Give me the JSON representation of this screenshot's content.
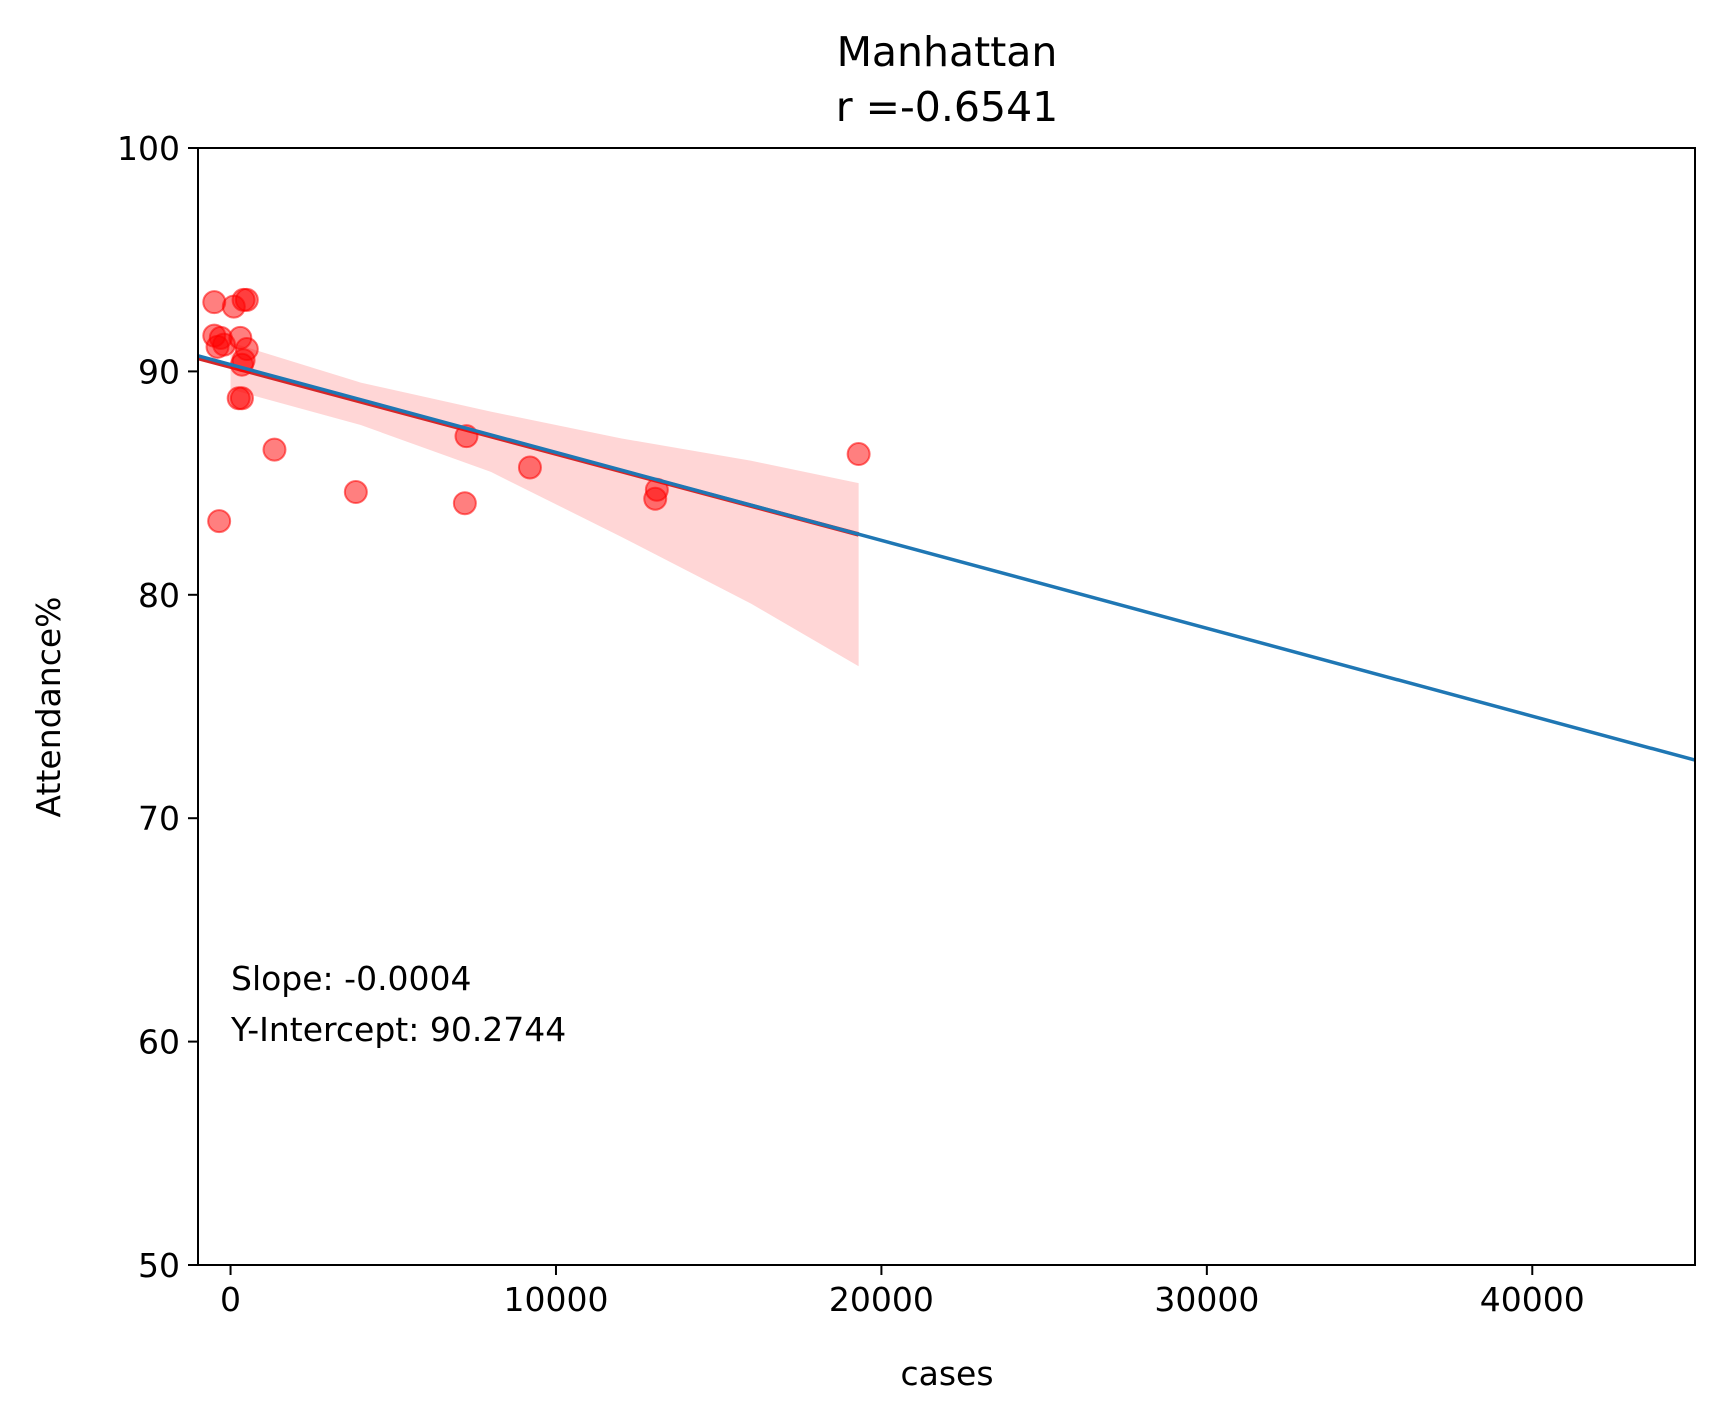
{
  "chart_data": {
    "type": "scatter",
    "title": "Manhattan",
    "subtitle": "r =-0.6541",
    "xlabel": "cases",
    "ylabel": "Attendance%",
    "xlim": [
      -1000,
      45000
    ],
    "ylim": [
      50,
      100
    ],
    "x_ticks": [
      0,
      10000,
      20000,
      30000,
      40000
    ],
    "x_tick_labels": [
      "0",
      "10000",
      "20000",
      "30000",
      "40000"
    ],
    "y_ticks": [
      50,
      60,
      70,
      80,
      90,
      100
    ],
    "y_tick_labels": [
      "50",
      "60",
      "70",
      "80",
      "90",
      "100"
    ],
    "grid": false,
    "annotations": [
      "Slope: -0.0004",
      "Y-Intercept: 90.2744"
    ],
    "points": [
      {
        "x": -500,
        "y": 93.1
      },
      {
        "x": 100,
        "y": 92.9
      },
      {
        "x": 400,
        "y": 93.2
      },
      {
        "x": 500,
        "y": 93.2
      },
      {
        "x": -500,
        "y": 91.6
      },
      {
        "x": -300,
        "y": 91.5
      },
      {
        "x": -400,
        "y": 91.1
      },
      {
        "x": -200,
        "y": 91.2
      },
      {
        "x": 300,
        "y": 91.5
      },
      {
        "x": 500,
        "y": 91.0
      },
      {
        "x": 400,
        "y": 90.5
      },
      {
        "x": 350,
        "y": 90.3
      },
      {
        "x": 250,
        "y": 88.8
      },
      {
        "x": 350,
        "y": 88.8
      },
      {
        "x": 1350,
        "y": 86.5
      },
      {
        "x": 3850,
        "y": 84.6
      },
      {
        "x": 7250,
        "y": 87.1
      },
      {
        "x": 7200,
        "y": 84.1
      },
      {
        "x": 9200,
        "y": 85.7
      },
      {
        "x": 13050,
        "y": 84.3
      },
      {
        "x": 13100,
        "y": 84.7
      },
      {
        "x": 19300,
        "y": 86.3
      },
      {
        "x": -350,
        "y": 83.3
      }
    ],
    "point_color": "#ff0000",
    "fit_line_seaborn": {
      "x": [
        -1000,
        19300
      ],
      "y": [
        90.6,
        82.7
      ],
      "color": "#d62728"
    },
    "confidence_band": {
      "x": [
        0,
        4000,
        8000,
        12000,
        16000,
        19300
      ],
      "upper": [
        91.3,
        89.5,
        88.2,
        87.0,
        86.0,
        85.0
      ],
      "lower": [
        89.2,
        87.6,
        85.5,
        82.6,
        79.6,
        76.8
      ],
      "color": "#ff9999"
    },
    "fit_line_full": {
      "x": [
        -1000,
        45000
      ],
      "y": [
        90.7,
        72.6
      ],
      "color": "#1f77b4"
    }
  }
}
